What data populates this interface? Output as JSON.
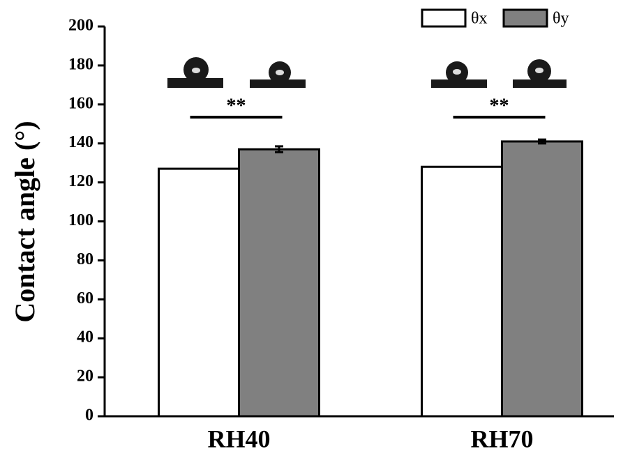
{
  "chart_data": {
    "type": "bar",
    "y_label": "Contact angle (°)",
    "categories": [
      "RH40",
      "RH70"
    ],
    "series": [
      {
        "name": "θx",
        "color": "#ffffff",
        "values": [
          127,
          128
        ]
      },
      {
        "name": "θy",
        "color": "#808080",
        "values": [
          137,
          141
        ],
        "errors": [
          1.5,
          1
        ]
      }
    ],
    "annotations": [
      "**",
      "**"
    ],
    "ylim": [
      0,
      200
    ],
    "yticks": [
      0,
      20,
      40,
      60,
      80,
      100,
      120,
      140,
      160,
      180,
      200
    ],
    "legend": "top-right"
  }
}
